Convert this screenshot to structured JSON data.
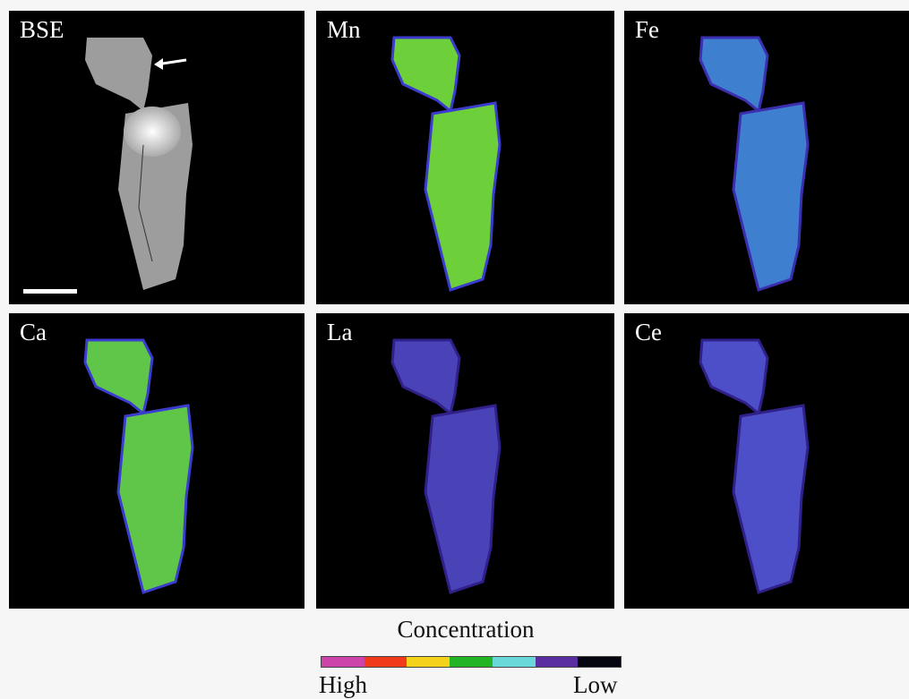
{
  "panels": [
    {
      "label": "BSE"
    },
    {
      "label": "Mn"
    },
    {
      "label": "Fe"
    },
    {
      "label": "Ca"
    },
    {
      "label": "La"
    },
    {
      "label": "Ce"
    }
  ],
  "legend": {
    "title": "Concentration",
    "high": "High",
    "low": "Low"
  }
}
